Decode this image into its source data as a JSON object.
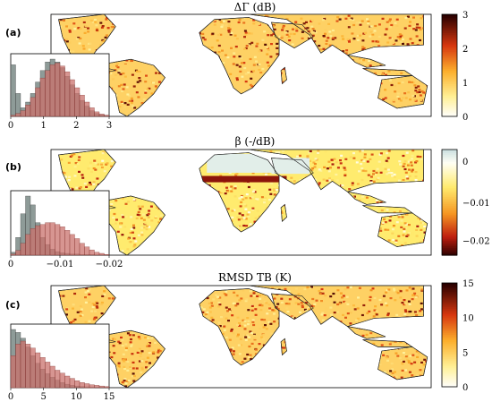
{
  "colors": {
    "map_ocean": "#ffffff",
    "land_low": "#fff6c8",
    "land_mid": "#f5a530",
    "land_high": "#b8160c",
    "hist_gray": "#7a8a86",
    "hist_red": "#c9726c",
    "border": "#222222"
  },
  "chart_data": [
    {
      "type": "map",
      "panel": "(a)",
      "title": "ΔΓ (dB)",
      "colorbar": {
        "ticks": [
          "0",
          "1",
          "2",
          "3"
        ],
        "range": [
          0,
          3
        ],
        "colormap": "hot"
      },
      "inset": {
        "type": "histogram",
        "xticks": [
          "0",
          "1",
          "2",
          "3"
        ],
        "xlim": [
          0,
          3
        ],
        "gray_values": [
          0.9,
          0.4,
          0.15,
          0.25,
          0.4,
          0.6,
          0.8,
          0.95,
          1.0,
          0.95,
          0.85,
          0.7,
          0.55,
          0.4,
          0.28,
          0.18,
          0.1,
          0.05,
          0.03,
          0.02
        ],
        "red_values": [
          0.02,
          0.05,
          0.1,
          0.2,
          0.33,
          0.5,
          0.67,
          0.8,
          0.9,
          0.93,
          0.88,
          0.78,
          0.64,
          0.5,
          0.37,
          0.25,
          0.15,
          0.08,
          0.04,
          0.02
        ]
      }
    },
    {
      "type": "map",
      "panel": "(b)",
      "title": "β (-/dB)",
      "colorbar": {
        "ticks": [
          "0",
          "−0.01",
          "−0.02"
        ],
        "range": [
          0.003,
          -0.025
        ],
        "colormap": "hot_reversed"
      },
      "inset": {
        "type": "histogram",
        "xticks": [
          "0",
          "−0.01",
          "−0.02"
        ],
        "xlim": [
          0.005,
          -0.025
        ],
        "gray_values": [
          0.05,
          0.3,
          0.7,
          1.0,
          0.85,
          0.55,
          0.3,
          0.18,
          0.1,
          0.06,
          0.04,
          0.03,
          0.02,
          0.02,
          0.01,
          0.01,
          0.01,
          0.0,
          0.0,
          0.0
        ],
        "red_values": [
          0.02,
          0.08,
          0.2,
          0.35,
          0.45,
          0.5,
          0.52,
          0.55,
          0.55,
          0.52,
          0.48,
          0.42,
          0.35,
          0.28,
          0.2,
          0.14,
          0.09,
          0.05,
          0.03,
          0.01
        ]
      }
    },
    {
      "type": "map",
      "panel": "(c)",
      "title": "RMSD TB (K)",
      "colorbar": {
        "ticks": [
          "0",
          "5",
          "10",
          "15"
        ],
        "range": [
          0,
          15
        ],
        "colormap": "hot"
      },
      "inset": {
        "type": "histogram",
        "xticks": [
          "0",
          "5",
          "10",
          "15"
        ],
        "xlim": [
          0,
          15
        ],
        "gray_values": [
          1.0,
          0.95,
          0.85,
          0.7,
          0.55,
          0.42,
          0.32,
          0.24,
          0.18,
          0.13,
          0.09,
          0.06,
          0.04,
          0.03,
          0.02,
          0.015,
          0.01,
          0.005,
          0.0,
          0.0
        ],
        "red_values": [
          0.55,
          0.75,
          0.8,
          0.75,
          0.68,
          0.6,
          0.52,
          0.44,
          0.37,
          0.3,
          0.25,
          0.2,
          0.16,
          0.12,
          0.09,
          0.07,
          0.05,
          0.04,
          0.03,
          0.02
        ]
      }
    }
  ]
}
